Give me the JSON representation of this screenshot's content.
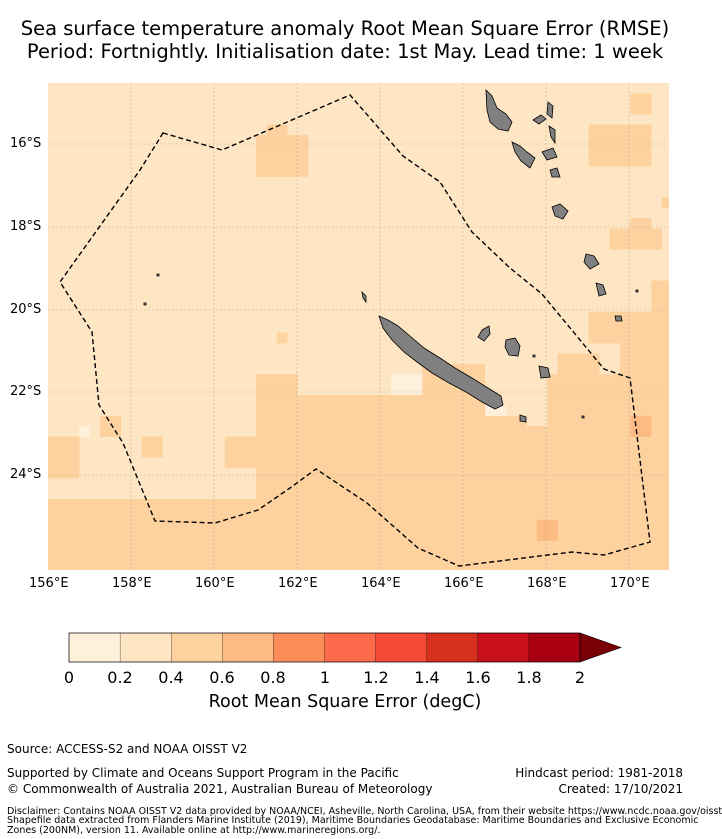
{
  "title_line1": "Sea surface temperature anomaly Root Mean Square Error (RMSE)",
  "title_line2": "Period: Fortnightly. Initialisation date: 1st May. Lead time: 1 week",
  "map": {
    "lon_ticks": [
      "156°E",
      "158°E",
      "160°E",
      "162°E",
      "164°E",
      "166°E",
      "168°E",
      "170°E"
    ],
    "lat_ticks": [
      "16°S",
      "18°S",
      "20°S",
      "22°S",
      "24°S"
    ],
    "extent": {
      "lon_min": 156.0,
      "lon_max": 171.0,
      "lat_min": -26.3,
      "lat_max": -14.5
    },
    "colors": {
      "land": "#808080",
      "eez_line": "#000000",
      "grid": "#b5a68a"
    }
  },
  "colorbar": {
    "label": "Root Mean Square Error (degC)",
    "ticks": [
      "0",
      "0.2",
      "0.4",
      "0.6",
      "0.8",
      "1",
      "1.2",
      "1.4",
      "1.6",
      "1.8",
      "2"
    ],
    "colors": [
      "#fff0dc",
      "#fee6c4",
      "#fdd29e",
      "#fdbb84",
      "#fc8d59",
      "#fb6a4a",
      "#f54a36",
      "#d7301f",
      "#c8101c",
      "#a80010"
    ],
    "extend_color": "#7a0006"
  },
  "footer": {
    "source": "Source: ACCESS-S2 and NOAA OISST V2",
    "support": "Supported by Climate and Oceans Support Program in the Pacific",
    "copyright": "© Commonwealth of Australia 2021, Australian Bureau of Meteorology",
    "hindcast": "Hindcast period: 1981-2018",
    "created": "Created: 17/10/2021",
    "disclaimer1": "Disclaimer: Contains NOAA OISST V2 data provided by NOAA/NCEI, Asheville, North Carolina, USA, from their website https://www.ncdc.noaa.gov/oisst",
    "disclaimer2": "Shapefile data extracted from Flanders Marine Institute (2019), Maritime Boundaries Geodatabase: Maritime Boundaries and Exclusive Economic",
    "disclaimer3": "Zones (200NM), version 11. Available online at http://www.marineregions.org/."
  }
}
